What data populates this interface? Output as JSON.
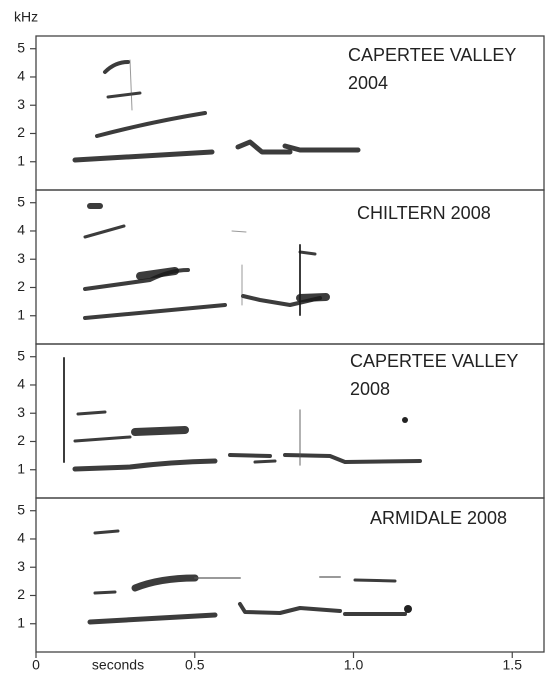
{
  "chart_data": [
    {
      "type": "spectrogram",
      "title": [
        "CAPERTEE VALLEY",
        "2004"
      ],
      "ylabel": "kHz",
      "ylim": [
        0,
        5.45
      ],
      "yticks": [
        1,
        2,
        3,
        4,
        5
      ]
    },
    {
      "type": "spectrogram",
      "title": [
        "CHILTERN 2008"
      ],
      "ylim": [
        0,
        5.45
      ],
      "yticks": [
        1,
        2,
        3,
        4,
        5
      ]
    },
    {
      "type": "spectrogram",
      "title": [
        "CAPERTEE VALLEY",
        "2008"
      ],
      "ylim": [
        0,
        5.45
      ],
      "yticks": [
        1,
        2,
        3,
        4,
        5
      ]
    },
    {
      "type": "spectrogram",
      "title": [
        "ARMIDALE 2008"
      ],
      "ylim": [
        0,
        5.45
      ],
      "yticks": [
        1,
        2,
        3,
        4,
        5
      ],
      "xlabel": "seconds",
      "xlim": [
        0,
        1.6
      ],
      "xticks": [
        0,
        0.5,
        {
          "value": 1,
          "label": "1.0"
        },
        1.5
      ]
    }
  ]
}
